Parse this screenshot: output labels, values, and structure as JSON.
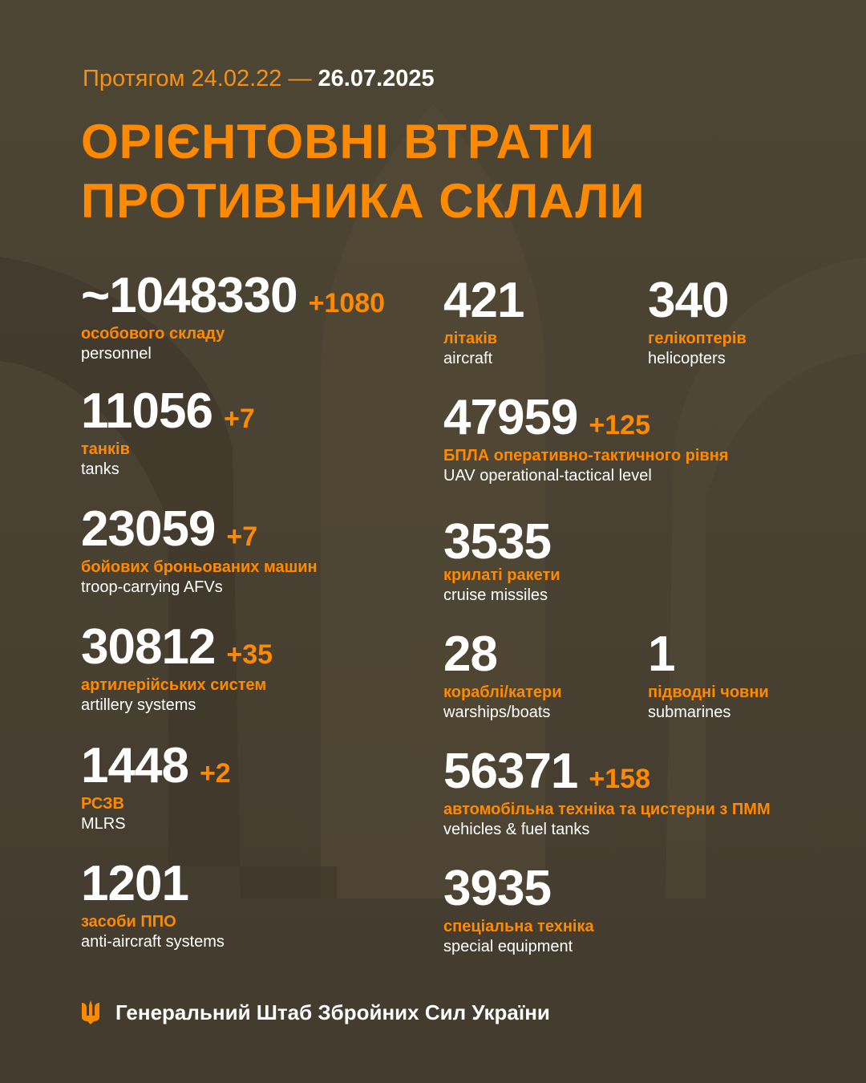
{
  "header": {
    "period_prefix": "Протягом 24.02.22 —",
    "period_end": "26.07.2025",
    "title_line1": "ОРІЄНТОВНІ ВТРАТИ",
    "title_line2": "ПРОТИВНИКА СКЛАЛИ"
  },
  "stats": {
    "personnel": {
      "value": "~1048330",
      "delta": "+1080",
      "ua": "особового складу",
      "en": "personnel"
    },
    "tanks": {
      "value": "11056",
      "delta": "+7",
      "ua": "танків",
      "en": "tanks"
    },
    "afv": {
      "value": "23059",
      "delta": "+7",
      "ua": "бойових броньованих машин",
      "en": "troop-carrying AFVs"
    },
    "artillery": {
      "value": "30812",
      "delta": "+35",
      "ua": "артилерійських систем",
      "en": "artillery systems"
    },
    "mlrs": {
      "value": "1448",
      "delta": "+2",
      "ua": "РСЗВ",
      "en": "MLRS"
    },
    "air_defense": {
      "value": "1201",
      "ua": "засоби ППО",
      "en": "anti-aircraft systems"
    },
    "aircraft": {
      "value": "421",
      "ua": "літаків",
      "en": "aircraft"
    },
    "helicopters": {
      "value": "340",
      "ua": "гелікоптерів",
      "en": "helicopters"
    },
    "uav": {
      "value": "47959",
      "delta": "+125",
      "ua": "БПЛА оперативно-тактичного рівня",
      "en": "UAV operational-tactical level"
    },
    "cruise_missiles": {
      "value": "3535",
      "ua": "крилаті ракети",
      "en": "cruise missiles"
    },
    "warships": {
      "value": "28",
      "ua": "кораблі/катери",
      "en": "warships/boats"
    },
    "submarines": {
      "value": "1",
      "ua": "підводні човни",
      "en": "submarines"
    },
    "vehicles": {
      "value": "56371",
      "delta": "+158",
      "ua": "автомобільна техніка та цистерни з ПММ",
      "en": "vehicles & fuel tanks"
    },
    "special": {
      "value": "3935",
      "ua": "спеціальна техніка",
      "en": "special equipment"
    }
  },
  "footer": {
    "text": "Генеральний Штаб Збройних Сил України",
    "icon": "trident-icon"
  },
  "colors": {
    "background": "#463e30",
    "accent": "#ff8a00",
    "text": "#ffffff"
  }
}
